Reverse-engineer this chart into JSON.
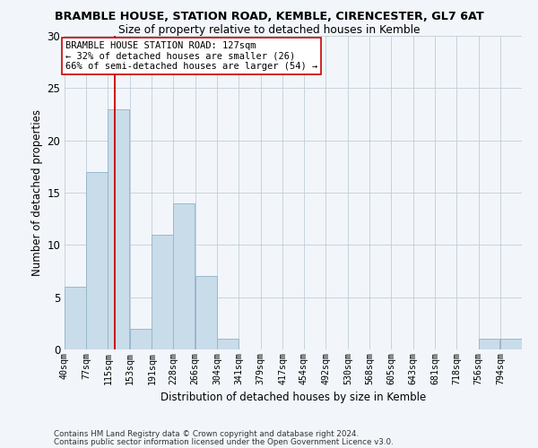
{
  "title1": "BRAMBLE HOUSE, STATION ROAD, KEMBLE, CIRENCESTER, GL7 6AT",
  "title2": "Size of property relative to detached houses in Kemble",
  "xlabel": "Distribution of detached houses by size in Kemble",
  "ylabel": "Number of detached properties",
  "bin_labels": [
    "40sqm",
    "77sqm",
    "115sqm",
    "153sqm",
    "191sqm",
    "228sqm",
    "266sqm",
    "304sqm",
    "341sqm",
    "379sqm",
    "417sqm",
    "454sqm",
    "492sqm",
    "530sqm",
    "568sqm",
    "605sqm",
    "643sqm",
    "681sqm",
    "718sqm",
    "756sqm",
    "794sqm"
  ],
  "bin_left_edges": [
    40,
    77,
    115,
    153,
    191,
    228,
    266,
    304,
    341,
    379,
    417,
    454,
    492,
    530,
    568,
    605,
    643,
    681,
    718,
    756,
    794
  ],
  "bin_width": 37,
  "bar_heights": [
    6,
    17,
    23,
    2,
    11,
    14,
    7,
    1,
    0,
    0,
    0,
    0,
    0,
    0,
    0,
    0,
    0,
    0,
    0,
    1,
    1
  ],
  "bar_color": "#c9dcea",
  "bar_edge_color": "#9ab8cc",
  "vline_x": 127,
  "vline_color": "#cc0000",
  "annotation_text": "BRAMBLE HOUSE STATION ROAD: 127sqm\n← 32% of detached houses are smaller (26)\n66% of semi-detached houses are larger (54) →",
  "annotation_box_color": "#ffffff",
  "annotation_border_color": "#cc0000",
  "ylim": [
    0,
    30
  ],
  "yticks": [
    0,
    5,
    10,
    15,
    20,
    25,
    30
  ],
  "footnote1": "Contains HM Land Registry data © Crown copyright and database right 2024.",
  "footnote2": "Contains public sector information licensed under the Open Government Licence v3.0.",
  "bg_color": "#f2f6fa"
}
